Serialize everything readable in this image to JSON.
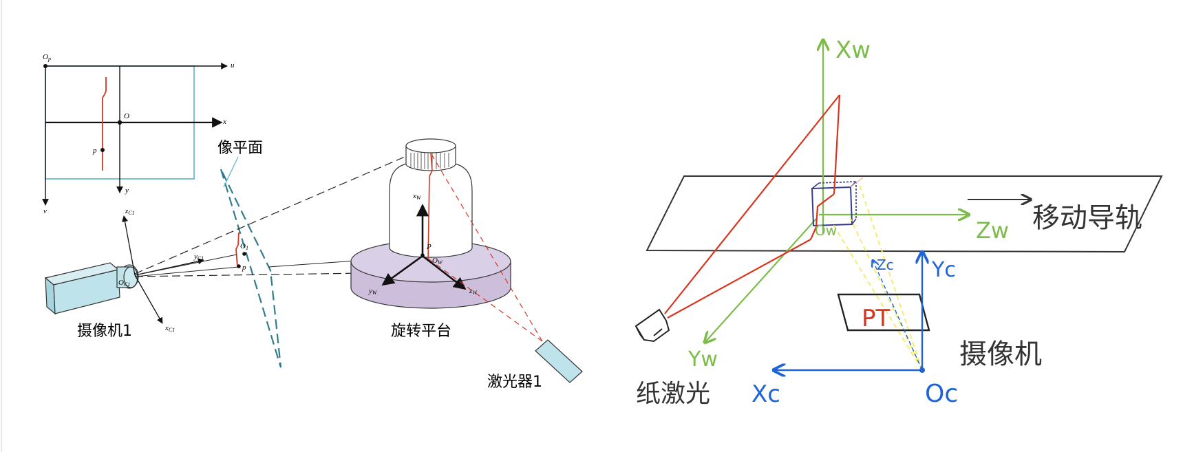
{
  "left_figure": {
    "image_plane_axes": {
      "origin_pixel": "O",
      "origin_pixel_sub": "p",
      "u": "u",
      "v": "v",
      "center": "O",
      "x": "x",
      "y": "y",
      "point_p": "p"
    },
    "image_plane_label": "像平面",
    "camera_label": "摄像机1",
    "camera_axes": {
      "z": "z",
      "y": "y",
      "x": "x",
      "sub": "C1",
      "origin": "O",
      "origin_sub": "C1"
    },
    "plane_point_O1": "O",
    "plane_point_O1_sub": "1",
    "plane_point_p": "p",
    "world_axes": {
      "x": "x",
      "y": "y",
      "z": "z",
      "sub": "W",
      "origin": "O",
      "origin_sub": "W",
      "point_P": "P"
    },
    "platform_label": "旋转平台",
    "laser_label": "激光器1"
  },
  "right_figure": {
    "xw_label": "Xw",
    "zw_label": "Zw",
    "yw_label": "Yw",
    "ow_label": "Ow",
    "rail_label": "移动导轨",
    "yc_label": "Yc",
    "zc_label": "Zc",
    "xc_label": "Xc",
    "oc_label": "Oc",
    "pt_label": "PT",
    "camera_label": "摄像机",
    "laser_label": "纸激光"
  },
  "colors": {
    "red": "#d8341e",
    "green": "#7cbc48",
    "blue": "#1f63d8",
    "teal": "#2f7c8c",
    "camera_fill": "#bfe3ea",
    "platform_fill": "#cdbfdc",
    "yellow": "#f3ec6e"
  }
}
